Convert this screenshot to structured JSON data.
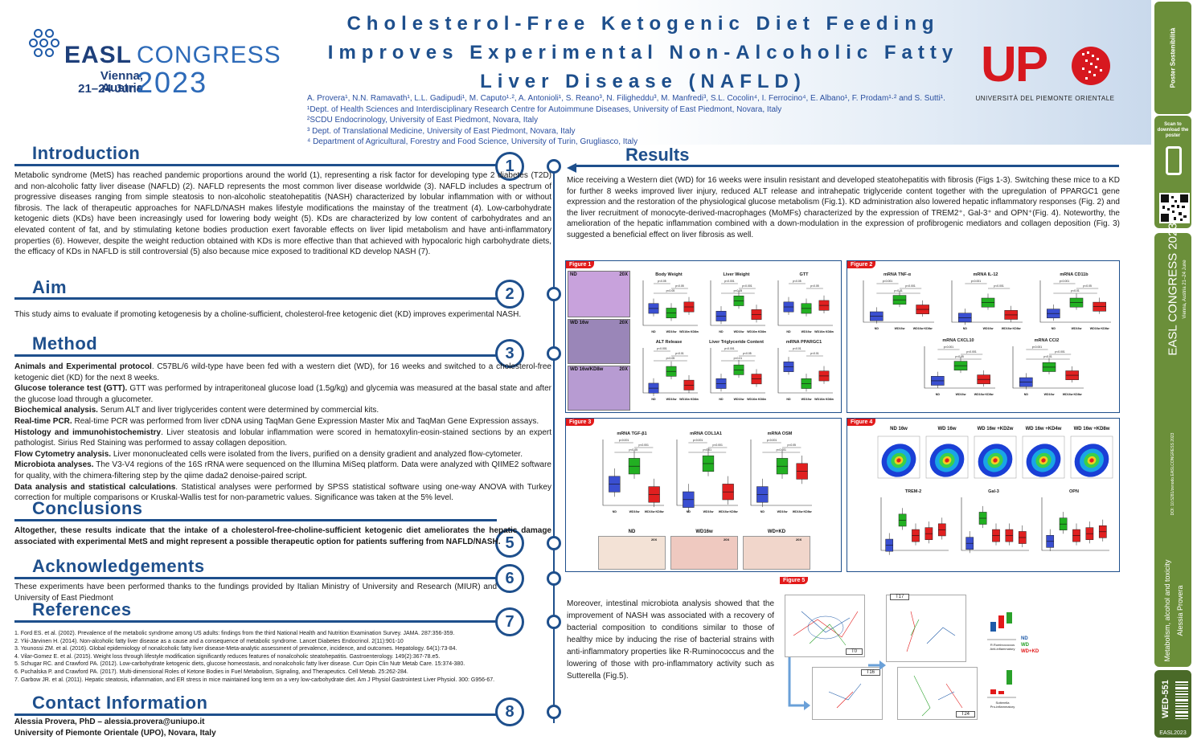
{
  "header": {
    "title_lines": [
      "Cholesterol-Free Ketogenic Diet Feeding",
      "Improves Experimental Non-Alcoholic Fatty",
      "Liver Disease (NAFLD)"
    ],
    "authors": "A. Provera¹, N.N. Ramavath¹, L.L. Gadipudi¹, M. Caputo¹·², A. Antonioli¹, S. Reano³, N. Filigheddu³, M. Manfredi³, S.L. Cocolin⁴, I. Ferrocino⁴, E. Albano¹, F. Prodam¹·² and S. Sutti¹.",
    "affiliations": [
      "¹Dept. of Health Sciences and Interdisciplinary Research Centre for Autoimmune Diseases, University of East Piedmont, Novara, Italy",
      "²SCDU Endocrinology, University of East Piedmont, Novara, Italy",
      "³ Dept. of Translational Medicine, University of East Piedmont, Novara, Italy",
      "⁴ Department of Agricultural, Forestry and Food Science, University of Turin, Grugliasco, Italy"
    ]
  },
  "easl_logo": {
    "easl": "EASL",
    "congress": "CONGRESS",
    "city": "Vienna, Austria",
    "dates": "21–24 June",
    "year": "2023"
  },
  "upo_logo": {
    "letters": "UP",
    "caption": "UNIVERSITÀ DEL PIEMONTE ORIENTALE"
  },
  "sidebar": {
    "top_text": "Poster Sostenibilità",
    "scan_text": "Scan to download the poster",
    "congress_text": "EASL CONGRESS 2023",
    "congress_sub": "Vienna, Austria 21–24 June",
    "doi_text": "DOI: 10.5281/zenodo.EASLCONGRESS 2023",
    "topic_text": "Metabolism, alcohol and toxicity",
    "author_text": "Alessia Provera",
    "poster_id": "WED-551",
    "footer": "EASL2023"
  },
  "sections": {
    "introduction": {
      "title": "Introduction",
      "number": "1",
      "text": "Metabolic syndrome (MetS) has reached pandemic proportions around the world (1), representing a risk factor for developing type 2 diabetes (T2D) and non-alcoholic fatty liver disease (NAFLD) (2). NAFLD represents the most common liver disease worldwide (3). NAFLD includes a spectrum of progressive diseases ranging from simple steatosis to non-alcoholic steatohepatitis (NASH) characterized by lobular inflammation with or without fibrosis. The lack of therapeutic approaches for NAFLD/NASH makes lifestyle modifications the mainstay of the treatment (4). Low-carbohydrate ketogenic diets (KDs) have been increasingly used for lowering body weight (5). KDs are characterized by low content of carbohydrates and an elevated content of fat, and by stimulating ketone bodies production exert favorable effects on liver lipid metabolism and have anti-inflammatory properties (6). However, despite the weight reduction obtained with KDs is more effective than that achieved with hypocaloric high carbohydrate diets, the efficacy of KDs in NAFLD is still controversial (5) also because mice exposed to traditional KD develop NASH (7)."
    },
    "aim": {
      "title": "Aim",
      "number": "2",
      "text": "This study aims to evaluate if promoting ketogenesis by a choline-sufficient, cholesterol-free ketogenic diet (KD) improves experimental NASH."
    },
    "method": {
      "title": "Method",
      "number": "3",
      "items": [
        {
          "head": "Animals and Experimental protocol",
          "text": ". C57BL/6 wild-type have been fed with a western diet (WD), for 16 weeks and switched to a cholesterol-free ketogenic diet (KD) for the next 8 weeks."
        },
        {
          "head": "Glucose tolerance test (GTT).",
          "text": " GTT was performed by intraperitoneal glucose load (1.5g/kg) and glycemia was measured at the basal state and after the glucose load through a glucometer."
        },
        {
          "head": "Biochemical analysis.",
          "text": " Serum ALT and liver triglycerides content were determined by commercial kits."
        },
        {
          "head": "Real-time PCR.",
          "text": " Real-time PCR was performed from liver cDNA using TaqMan Gene Expression Master Mix and TaqMan Gene Expression assays."
        },
        {
          "head": "Histology and immunohistochemistry",
          "text": ". Liver steatosis and lobular inflammation were scored in hematoxylin-eosin-stained sections by an expert pathologist. Sirius Red Staining was performed to assay collagen deposition."
        },
        {
          "head": "Flow Cytometry analysis.",
          "text": " Liver mononucleated cells were isolated from the livers, purified on a density gradient and analyzed flow-cytometer."
        },
        {
          "head": "Microbiota analyses.",
          "text": " The V3-V4 regions of the 16S rRNA were sequenced on the Illumina MiSeq platform. Data were analyzed with QIIME2 software for quality, with the chimera-filtering step by the qiime dada2 denoise-paired script."
        },
        {
          "head": "Data analysis and statistical calculations",
          "text": ". Statistical analyses were performed by SPSS statistical software using one-way ANOVA with Turkey correction for multiple comparisons or Kruskal-Wallis test for non-parametric values. Significance was taken at the 5% level."
        }
      ]
    },
    "conclusions": {
      "title": "Conclusions",
      "number": "5",
      "text": "Altogether, these results indicate that the intake of a cholesterol-free-choline-sufficient ketogenic diet ameliorates the hepatic damage associated with experimental MetS and might represent a possible therapeutic option for patients suffering from NAFLD/NASH."
    },
    "acknowledgements": {
      "title": "Acknowledgements",
      "number": "6",
      "text": "These experiments have been performed thanks to the fundings provided by Italian Ministry of University and Research (MIUR) and University of East Piedmont"
    },
    "references": {
      "title": "References",
      "number": "7",
      "items": [
        "1. Ford ES. et al. (2002). Prevalence of the metabolic syndrome among US adults: findings from the third National Health and Nutrition Examination Survey. JAMA. 287:356-359.",
        "2. Yki-Järvinen H. (2014). Non-alcoholic fatty liver disease as a cause and a consequence of metabolic syndrome. Lancet Diabetes Endocrinol. 2(11):901-10",
        "3. Younossi ZM. et al. (2016). Global epidemiology of nonalcoholic fatty liver disease-Meta-analytic assessment of prevalence, incidence, and outcomes. Hepatology. 64(1):73-84.",
        "4. Vilar-Gomez E. et al. (2015). Weight loss through lifestyle modification significantly reduces features of nonalcoholic steatohepatitis. Gastroenterology. 149(2):367-78.e5.",
        "5. Schugar RC. and Crawford PA. (2012). Low-carbohydrate ketogenic diets, glucose homeostasis, and nonalcoholic fatty liver disease. Curr Opin Clin Nutr Metab Care. 15:374-380.",
        "6. Puchalska P. and Crawford PA. (2017). Multi-dimensional Roles of Ketone Bodies in Fuel Metabolism, Signaling, and Therapeutics. Cell Metab. 25:262-284.",
        "7. Garbow JR. et al. (2011). Hepatic steatosis, inflammation, and ER stress in mice maintained long term on a very low-carbohydrate diet. Am J Physiol Gastrointest Liver Physiol. 300: G956-67."
      ]
    },
    "contact": {
      "title": "Contact Information",
      "number": "8",
      "line1": "Alessia Provera, PhD –  alessia.provera@uniupo.it",
      "line2": "University of Piemonte Orientale (UPO), Novara, Italy"
    },
    "results": {
      "title": "Results",
      "text": "Mice receiving a Western diet (WD) for 16 weeks were insulin resistant and developed steatohepatitis with fibrosis (Figs 1-3). Switching these mice to a KD for further 8 weeks improved liver injury, reduced ALT release and intrahepatic triglyceride content together with the upregulation of PPARGC1 gene expression and the restoration of the physiological glucose metabolism (Fig.1). KD administration also lowered hepatic inflammatory responses (Fig. 2) and the liver recruitment of monocyte-derived-macrophages (MoMFs) characterized by the expression of TREM2⁺, Gal-3⁺ and OPN⁺(Fig. 4). Noteworthy, the amelioration of the hepatic inflammation combined with a down-modulation in the expression of profibrogenic mediators and collagen deposition (Fig. 3) suggested a beneficial effect on liver fibrosis as well.",
      "microbiota_text": "Moreover, intestinal microbiota analysis showed that the improvement of NASH was associated with a recovery of bacterial composition to conditions similar to those of healthy mice by inducing the rise of bacterial strains with anti-inflammatory properties like R-Ruminococcus and the lowering of those with pro-inflammatory activity such as Sutterella (Fig.5)."
    }
  },
  "figures": {
    "fig1": {
      "tag": "Figure 1",
      "histology": [
        {
          "label": "ND",
          "mag": "20X"
        },
        {
          "label": "WD 16w",
          "mag": "20X"
        },
        {
          "label": "WD 16w/KD8w",
          "mag": "20X"
        }
      ],
      "groups": [
        "ND",
        "WD16w",
        "WD16w KD8w"
      ],
      "plots": [
        {
          "title": "Body Weight",
          "ann": [
            "p<0.05",
            "p<0.05",
            "p<0.05"
          ]
        },
        {
          "title": "Liver Weight",
          "ann": [
            "p<0.001",
            "p<0.001",
            "p<0.05"
          ]
        },
        {
          "title": "GTT",
          "ann": [
            "p<0.05",
            "p<0.05"
          ]
        },
        {
          "title": "ALT Release",
          "ann": [
            "p<0.001",
            "p<0.01",
            "p<0.05"
          ]
        },
        {
          "title": "Liver Triglyceride Content",
          "ann": [
            "p<0.001",
            "p<0.05",
            "p<0.01"
          ]
        },
        {
          "title": "mRNA PPARGC1",
          "ann": [
            "p<0.01",
            "p<0.01"
          ]
        }
      ]
    },
    "fig2": {
      "tag": "Figure 2",
      "plots": [
        {
          "title": "mRNA TNF-α",
          "ann": [
            "p<0.001",
            "p<0.001",
            "p<0.01"
          ]
        },
        {
          "title": "mRNA IL-12",
          "ann": [
            "p<0.001",
            "p<0.001"
          ]
        },
        {
          "title": "mRNA CD11b",
          "ann": [
            "p<0.001",
            "p<0.05",
            "p<0.01"
          ]
        },
        {
          "title": "mRNA CXCL10",
          "ann": [
            "p<0.001",
            "p<0.001",
            "p<0.05"
          ]
        },
        {
          "title": "mRNA CCl2",
          "ann": [
            "p<0.001",
            "p<0.001",
            "p<0.01"
          ]
        }
      ]
    },
    "fig3": {
      "tag": "Figure 3",
      "plots": [
        {
          "title": "mRNA TGF-β1",
          "ann": [
            "p<0.001",
            "p<0.001",
            "p<0.05"
          ]
        },
        {
          "title": "mRNA COL1A1",
          "ann": [
            "p<0.001",
            "p<0.001",
            "p<0.01"
          ]
        },
        {
          "title": "mRNA OSM",
          "ann": [
            "p<0.001",
            "p<0.05",
            "p<0.001"
          ]
        }
      ],
      "stains": [
        "ND",
        "WD16w",
        "WD+KD"
      ],
      "stain_mag": "20X"
    },
    "fig4": {
      "tag": "Figure 4",
      "flow_labels": [
        "ND 16w",
        "WD 16w",
        "WD 16w +KD2w",
        "WD 16w +KD4w",
        "WD 16w +KD8w"
      ],
      "plots": [
        {
          "title": "TREM-2"
        },
        {
          "title": "Gal-3"
        },
        {
          "title": "OPN"
        }
      ]
    },
    "fig5": {
      "tag": "Figure 5",
      "pca_labels": [
        "T0",
        "T17",
        "T16",
        "T24"
      ],
      "legend": [
        "ND",
        "WD",
        "WD+KD"
      ],
      "legend_colors": [
        "#1e5aa8",
        "#2aa12a",
        "#e21a1a"
      ],
      "side_labels": [
        "R.Ruminococcus\nAnti-inflammatory",
        "Sutterella\nPro-inflammatory"
      ]
    }
  },
  "colors": {
    "accent": "#1e4f8c",
    "nd": "#3a4fd1",
    "wd": "#22b022",
    "kd": "#e02020",
    "fig_tag": "#e21a1a"
  }
}
